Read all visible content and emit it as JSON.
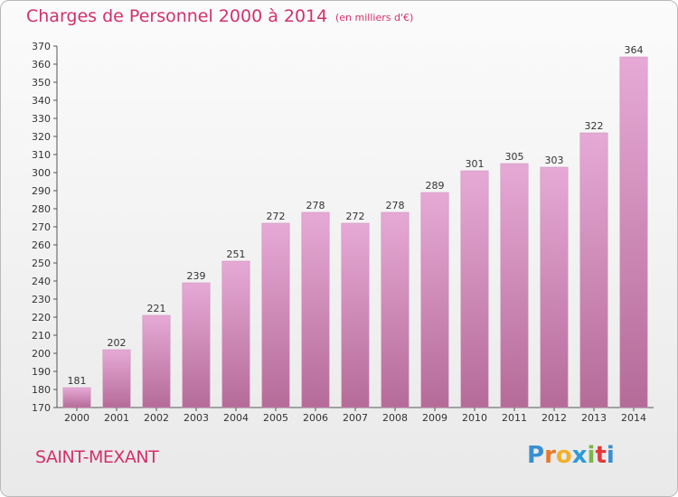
{
  "title": "Charges de Personnel 2000 à 2014",
  "subtitle": "(en milliers d'€)",
  "commune": "SAINT-MEXANT",
  "logo": {
    "letters": [
      "P",
      "r",
      "o",
      "x",
      "i",
      "t",
      "i"
    ],
    "colors": [
      "#3a8fd0",
      "#e8792a",
      "#f0b12a",
      "#2f9ad8",
      "#7ab648",
      "#e23a3a",
      "#3a8fd0"
    ]
  },
  "colors": {
    "accent": "#d3306c",
    "bar_top": "#e6a9d6",
    "bar_bottom": "#b56b98"
  },
  "chart_data": {
    "type": "bar",
    "categories": [
      "2000",
      "2001",
      "2002",
      "2003",
      "2004",
      "2005",
      "2006",
      "2007",
      "2008",
      "2009",
      "2010",
      "2011",
      "2012",
      "2013",
      "2014"
    ],
    "values": [
      181,
      202,
      221,
      239,
      251,
      272,
      278,
      272,
      278,
      289,
      301,
      305,
      303,
      322,
      364
    ],
    "ylim": [
      170,
      370
    ],
    "ytick_step": 10,
    "grid": false
  }
}
